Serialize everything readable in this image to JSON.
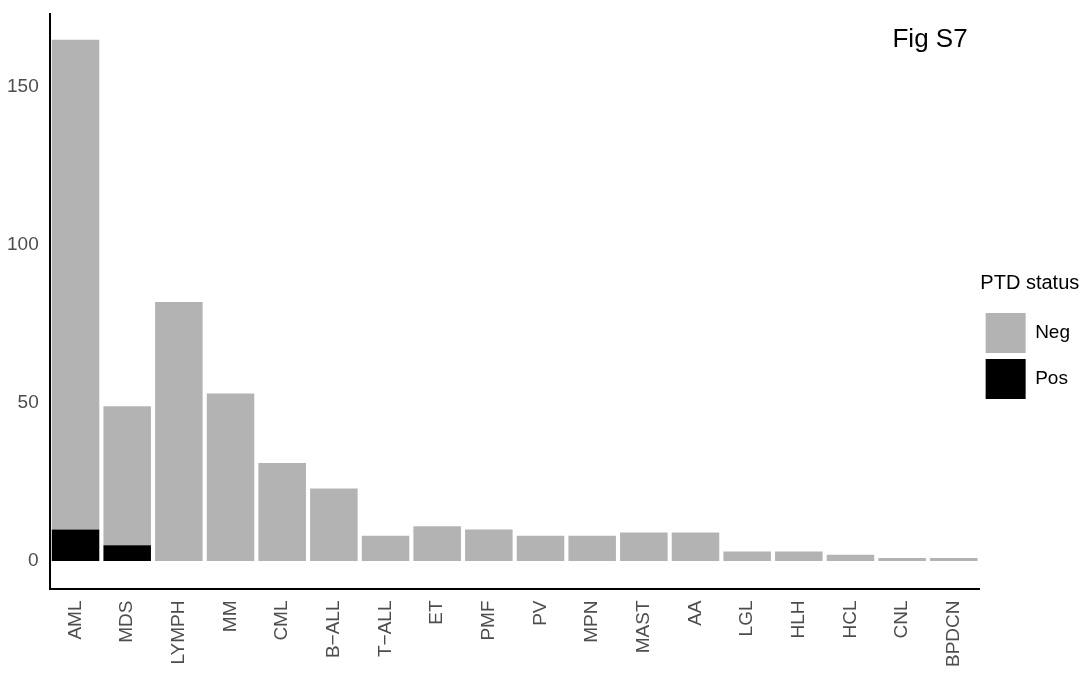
{
  "chart_data": {
    "type": "bar",
    "title": "Fig S7",
    "legend_title": "PTD status",
    "stacked": true,
    "legend": "right",
    "grid": false,
    "categories": [
      "AML",
      "MDS",
      "LYMPH",
      "MM",
      "CML",
      "B−ALL",
      "T−ALL",
      "ET",
      "PMF",
      "PV",
      "MPN",
      "MAST",
      "AA",
      "LGL",
      "HLH",
      "HCL",
      "CNL",
      "BPDCN"
    ],
    "series": [
      {
        "name": "Pos",
        "color": "#000000",
        "values": [
          10,
          5,
          0,
          0,
          0,
          0,
          0,
          0,
          0,
          0,
          0,
          0,
          0,
          0,
          0,
          0,
          0,
          0
        ]
      },
      {
        "name": "Neg",
        "color": "#b3b3b3",
        "values": [
          155,
          44,
          82,
          53,
          31,
          23,
          8,
          11,
          10,
          8,
          8,
          9,
          9,
          3,
          3,
          2,
          1,
          1
        ]
      }
    ],
    "ylim": [
      -9,
      173
    ],
    "yticks": [
      0,
      50,
      100,
      150
    ]
  }
}
